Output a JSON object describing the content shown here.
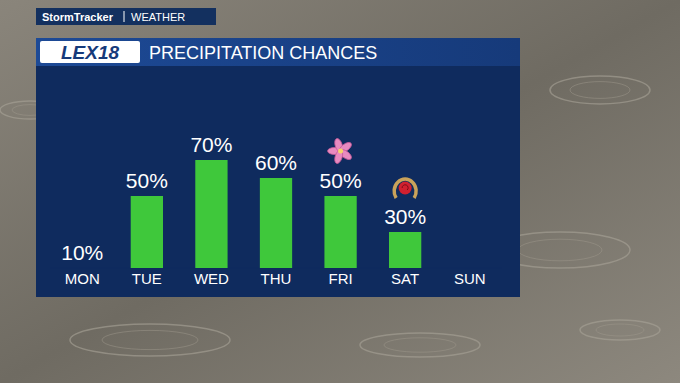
{
  "header": {
    "brand": "StormTracker",
    "section": "WEATHER",
    "logo": "LEX18"
  },
  "chart_data": {
    "type": "bar",
    "title": "PRECIPITATION CHANCES",
    "categories": [
      "MON",
      "TUE",
      "WED",
      "THU",
      "FRI",
      "SAT",
      "SUN"
    ],
    "values": [
      10,
      50,
      70,
      60,
      50,
      30,
      null
    ],
    "value_labels": [
      "10%",
      "50%",
      "70%",
      "60%",
      "50%",
      "30%",
      null
    ],
    "color": "#3fc83b",
    "ylim": [
      10,
      80
    ],
    "grid": false,
    "data_labels": true,
    "tick_labels": "x"
  }
}
